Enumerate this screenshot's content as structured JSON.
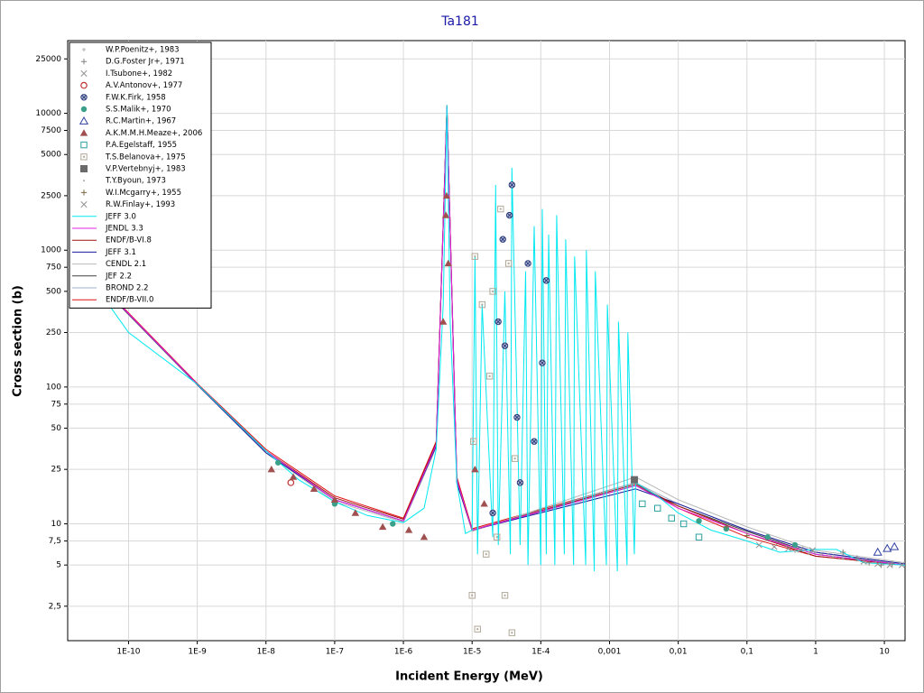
{
  "chart_data": {
    "type": "line",
    "title": "Ta181",
    "x_label": "Incident Energy (MeV)",
    "y_label": "Cross section (b)",
    "log_x": true,
    "log_y": true,
    "grid": true,
    "legend": "upper left",
    "xlim": [
      1.3e-11,
      20
    ],
    "ylim": [
      1.4,
      34000
    ],
    "xticks": [
      {
        "value": 1e-10,
        "label": "1E-10"
      },
      {
        "value": 1e-09,
        "label": "1E-9"
      },
      {
        "value": 1e-08,
        "label": "1E-8"
      },
      {
        "value": 1e-07,
        "label": "1E-7"
      },
      {
        "value": 1e-06,
        "label": "1E-6"
      },
      {
        "value": 1e-05,
        "label": "1E-5"
      },
      {
        "value": 0.0001,
        "label": "1E-4"
      },
      {
        "value": 0.001,
        "label": "0,001"
      },
      {
        "value": 0.01,
        "label": "0,01"
      },
      {
        "value": 0.1,
        "label": "0,1"
      },
      1,
      10
    ],
    "yticks": [
      {
        "value": 2.5,
        "label": "2,5"
      },
      5,
      {
        "value": 7.5,
        "label": "7,5"
      },
      10,
      25,
      50,
      75,
      100,
      250,
      500,
      750,
      1000,
      2500,
      5000,
      7500,
      10000,
      25000
    ],
    "series": [
      {
        "name": "W.P.Poenitz+, 1983",
        "color": "#b0b0b0",
        "marker": "plus-small",
        "x": [
          0.5,
          0.8,
          1.2,
          1.8,
          2.5
        ],
        "values": [
          6.3,
          6.1,
          6.0,
          5.8,
          5.6
        ]
      },
      {
        "name": "D.G.Foster Jr+, 1971",
        "color": "#808080",
        "marker": "plus",
        "x": [
          2.5,
          4,
          6,
          9,
          13
        ],
        "values": [
          6.2,
          5.6,
          5.2,
          5.0,
          5.1
        ]
      },
      {
        "name": "I.Tsubone+, 1982",
        "color": "#909090",
        "marker": "cross",
        "x": [
          0.15,
          0.25,
          0.4,
          0.6,
          0.9
        ],
        "values": [
          7.0,
          6.8,
          6.6,
          6.5,
          6.4
        ]
      },
      {
        "name": "A.V.Antonov+, 1977",
        "color": "#c03030",
        "marker": "circle-open",
        "x": [
          2.3e-08
        ],
        "values": [
          20
        ]
      },
      {
        "name": "F.W.K.Firk, 1958",
        "color": "#2a3a7a",
        "marker": "circle-cross",
        "x": [
          2e-05,
          2.4e-05,
          3e-05,
          3.5e-05,
          3.8e-05,
          5e-05,
          6.5e-05,
          8e-05,
          0.00012,
          0.000105,
          4.5e-05,
          2.8e-05
        ],
        "values": [
          12,
          300,
          200,
          1800,
          3000,
          20,
          800,
          40,
          600,
          150,
          60,
          1200
        ]
      },
      {
        "name": "S.S.Malik+, 1970",
        "color": "#3aa08a",
        "marker": "dot",
        "x": [
          1.5e-08,
          1e-07,
          7e-07,
          0.02,
          0.05,
          0.2,
          0.5
        ],
        "values": [
          28,
          14,
          10,
          10.5,
          9.2,
          8,
          7
        ]
      },
      {
        "name": "R.C.Martin+, 1967",
        "color": "#3040a0",
        "marker": "triangle-open",
        "x": [
          8,
          11,
          14
        ],
        "values": [
          6.2,
          6.6,
          6.8
        ]
      },
      {
        "name": "A.K.M.M.H.Meaze+, 2006",
        "color": "#a05050",
        "marker": "triangle",
        "x": [
          1.2e-08,
          2.5e-08,
          5e-08,
          1e-07,
          2e-07,
          5e-07,
          1.2e-06,
          2e-06,
          4.15e-06,
          4.25e-06,
          4.5e-06,
          3.8e-06,
          1.1e-05,
          1.5e-05
        ],
        "values": [
          25,
          22,
          18,
          15,
          12,
          9.5,
          9,
          8,
          1800,
          2500,
          800,
          300,
          25,
          14
        ]
      },
      {
        "name": "P.A.Egelstaff, 1955",
        "color": "#2aa0a0",
        "marker": "square-open",
        "x": [
          0.003,
          0.005,
          0.008,
          0.012,
          0.02
        ],
        "values": [
          14,
          13,
          11,
          10,
          8
        ]
      },
      {
        "name": "T.S.Belanova+, 1975",
        "color": "#b0a898",
        "marker": "square-dot",
        "x": [
          1e-05,
          1.05e-05,
          1.1e-05,
          1.2e-05,
          1.4e-05,
          1.6e-05,
          1.8e-05,
          2e-05,
          2.3e-05,
          2.6e-05,
          3e-05,
          3.4e-05,
          3.8e-05,
          4.2e-05
        ],
        "values": [
          3,
          40,
          900,
          1.7,
          400,
          6,
          120,
          500,
          8,
          2000,
          3,
          800,
          1.6,
          30
        ]
      },
      {
        "name": "V.P.Vertebnyj+, 1983",
        "color": "#6a6a6a",
        "marker": "square",
        "x": [
          0.0023
        ],
        "values": [
          21
        ]
      },
      {
        "name": "T.Y.Byoun, 1973",
        "color": "#a0a0a0",
        "marker": "tiny",
        "x": [
          0.7,
          1.0,
          1.5
        ],
        "values": [
          6.4,
          6.2,
          6.0
        ]
      },
      {
        "name": "W.I.Mcgarry+, 1955",
        "color": "#7a6a40",
        "marker": "plus",
        "x": [
          0.05,
          0.1
        ],
        "values": [
          9.5,
          8.2
        ]
      },
      {
        "name": "R.W.Finlay+, 1993",
        "color": "#909090",
        "marker": "cross",
        "x": [
          5,
          8,
          12,
          18
        ],
        "values": [
          5.3,
          5.1,
          5.0,
          5.0
        ]
      },
      {
        "name": "JEFF 3.0",
        "color": "#00e8f0",
        "marker": "line",
        "x": [
          2e-11,
          1e-10,
          1e-09,
          1e-08,
          3e-08,
          1e-07,
          3e-07,
          1e-06,
          2e-06,
          3e-06,
          3.8e-06,
          4.3e-06,
          4.8e-06,
          6e-06,
          8e-06,
          1e-05,
          1.1e-05,
          1.2e-05,
          1.4e-05,
          2e-05,
          2.2e-05,
          2.4e-05,
          3e-05,
          3.6e-05,
          3.8e-05,
          5e-05,
          6e-05,
          6.5e-05,
          8e-05,
          0.0001,
          0.000105,
          0.00012,
          0.00013,
          0.00016,
          0.00017,
          0.00022,
          0.00023,
          0.0003,
          0.00031,
          0.00045,
          0.00046,
          0.0006,
          0.00062,
          0.0009,
          0.00093,
          0.0013,
          0.00135,
          0.0018,
          0.00185,
          0.0023,
          0.0024,
          0.005,
          0.01,
          0.03,
          0.1,
          0.3,
          1,
          2,
          5,
          20
        ],
        "values": [
          780,
          250,
          105,
          34,
          21,
          14.5,
          11.5,
          10.2,
          13,
          35,
          400,
          11500,
          300,
          20,
          8.5,
          9,
          900,
          6,
          400,
          8,
          3000,
          7,
          500,
          6,
          4000,
          7,
          700,
          5,
          1500,
          5,
          2000,
          6,
          1300,
          5,
          1800,
          6,
          1200,
          5,
          900,
          5,
          1000,
          4.5,
          700,
          5,
          400,
          4.5,
          300,
          5,
          250,
          6,
          20,
          16,
          12,
          9,
          7.5,
          6.2,
          6.5,
          6.5,
          5.2,
          5
        ]
      },
      {
        "name": "JENDL 3.3",
        "color": "#e020e0",
        "marker": "line",
        "x": [
          2e-11,
          1e-09,
          1e-08,
          1e-07,
          1e-06,
          3e-06,
          4.3e-06,
          6e-06,
          1e-05,
          0.0024,
          0.01,
          0.1,
          1,
          20
        ],
        "values": [
          790,
          105,
          34,
          15,
          10.5,
          38,
          11000,
          21,
          9,
          19,
          13,
          8.5,
          6,
          5
        ]
      },
      {
        "name": "ENDF/B-VI.8",
        "color": "#a01010",
        "marker": "line",
        "x": [
          2e-11,
          1e-09,
          1e-08,
          1e-07,
          1e-06,
          3e-06,
          4.3e-06,
          6e-06,
          1e-05,
          0.0024,
          0.01,
          0.1,
          1,
          20
        ],
        "values": [
          785,
          105,
          34,
          15.5,
          10.8,
          39,
          11200,
          21,
          9,
          19.5,
          13.5,
          8.5,
          5.8,
          5
        ]
      },
      {
        "name": "JEFF 3.1",
        "color": "#1a1a9a",
        "marker": "line",
        "x": [
          2e-11,
          1e-09,
          1e-08,
          1e-07,
          1e-06,
          3e-06,
          4.3e-06,
          6e-06,
          1e-05,
          0.0024,
          0.01,
          0.1,
          1,
          20
        ],
        "values": [
          780,
          104,
          33,
          15,
          10.5,
          37,
          11000,
          20,
          9,
          18,
          14,
          9,
          6.2,
          5.1
        ]
      },
      {
        "name": "CENDL 2.1",
        "color": "#b8b8b8",
        "marker": "line",
        "x": [
          2e-11,
          1e-09,
          1e-08,
          1e-07,
          1e-06,
          3e-06,
          4.3e-06,
          6e-06,
          1e-05,
          0.0024,
          0.01,
          0.1,
          1,
          20
        ],
        "values": [
          770,
          103,
          33,
          14.5,
          10.3,
          36,
          10500,
          20,
          8.8,
          22,
          15,
          9.5,
          6.4,
          5.2
        ]
      },
      {
        "name": "JEF 2.2",
        "color": "#404040",
        "marker": "line",
        "x": [
          2e-11,
          1e-09,
          1e-08,
          1e-07,
          1e-06,
          3e-06,
          4.3e-06,
          6e-06,
          1e-05,
          0.0024,
          0.01,
          0.1,
          1,
          20
        ],
        "values": [
          780,
          104,
          34,
          15,
          10.5,
          37,
          11000,
          20,
          9,
          19,
          13.5,
          8.8,
          6,
          5
        ]
      },
      {
        "name": "BROND 2.2",
        "color": "#a0b0c8",
        "marker": "line",
        "x": [
          2e-11,
          1e-09,
          1e-08,
          1e-07,
          1e-06,
          3e-06,
          4.3e-06,
          6e-06,
          1e-05,
          0.0024,
          0.01,
          0.1,
          1,
          20
        ],
        "values": [
          780,
          104,
          34,
          15,
          10.5,
          37,
          11000,
          20,
          9,
          20,
          14,
          9,
          6.2,
          5
        ]
      },
      {
        "name": "ENDF/B-VII.0",
        "color": "#e01010",
        "marker": "line",
        "x": [
          2e-11,
          1e-09,
          1e-08,
          1e-07,
          1e-06,
          3e-06,
          4.3e-06,
          6e-06,
          1e-05,
          0.0024,
          0.01,
          0.1,
          1,
          20
        ],
        "values": [
          800,
          106,
          35,
          16,
          11,
          40,
          11500,
          22,
          9.2,
          20,
          13,
          8,
          5.8,
          5
        ]
      }
    ]
  }
}
